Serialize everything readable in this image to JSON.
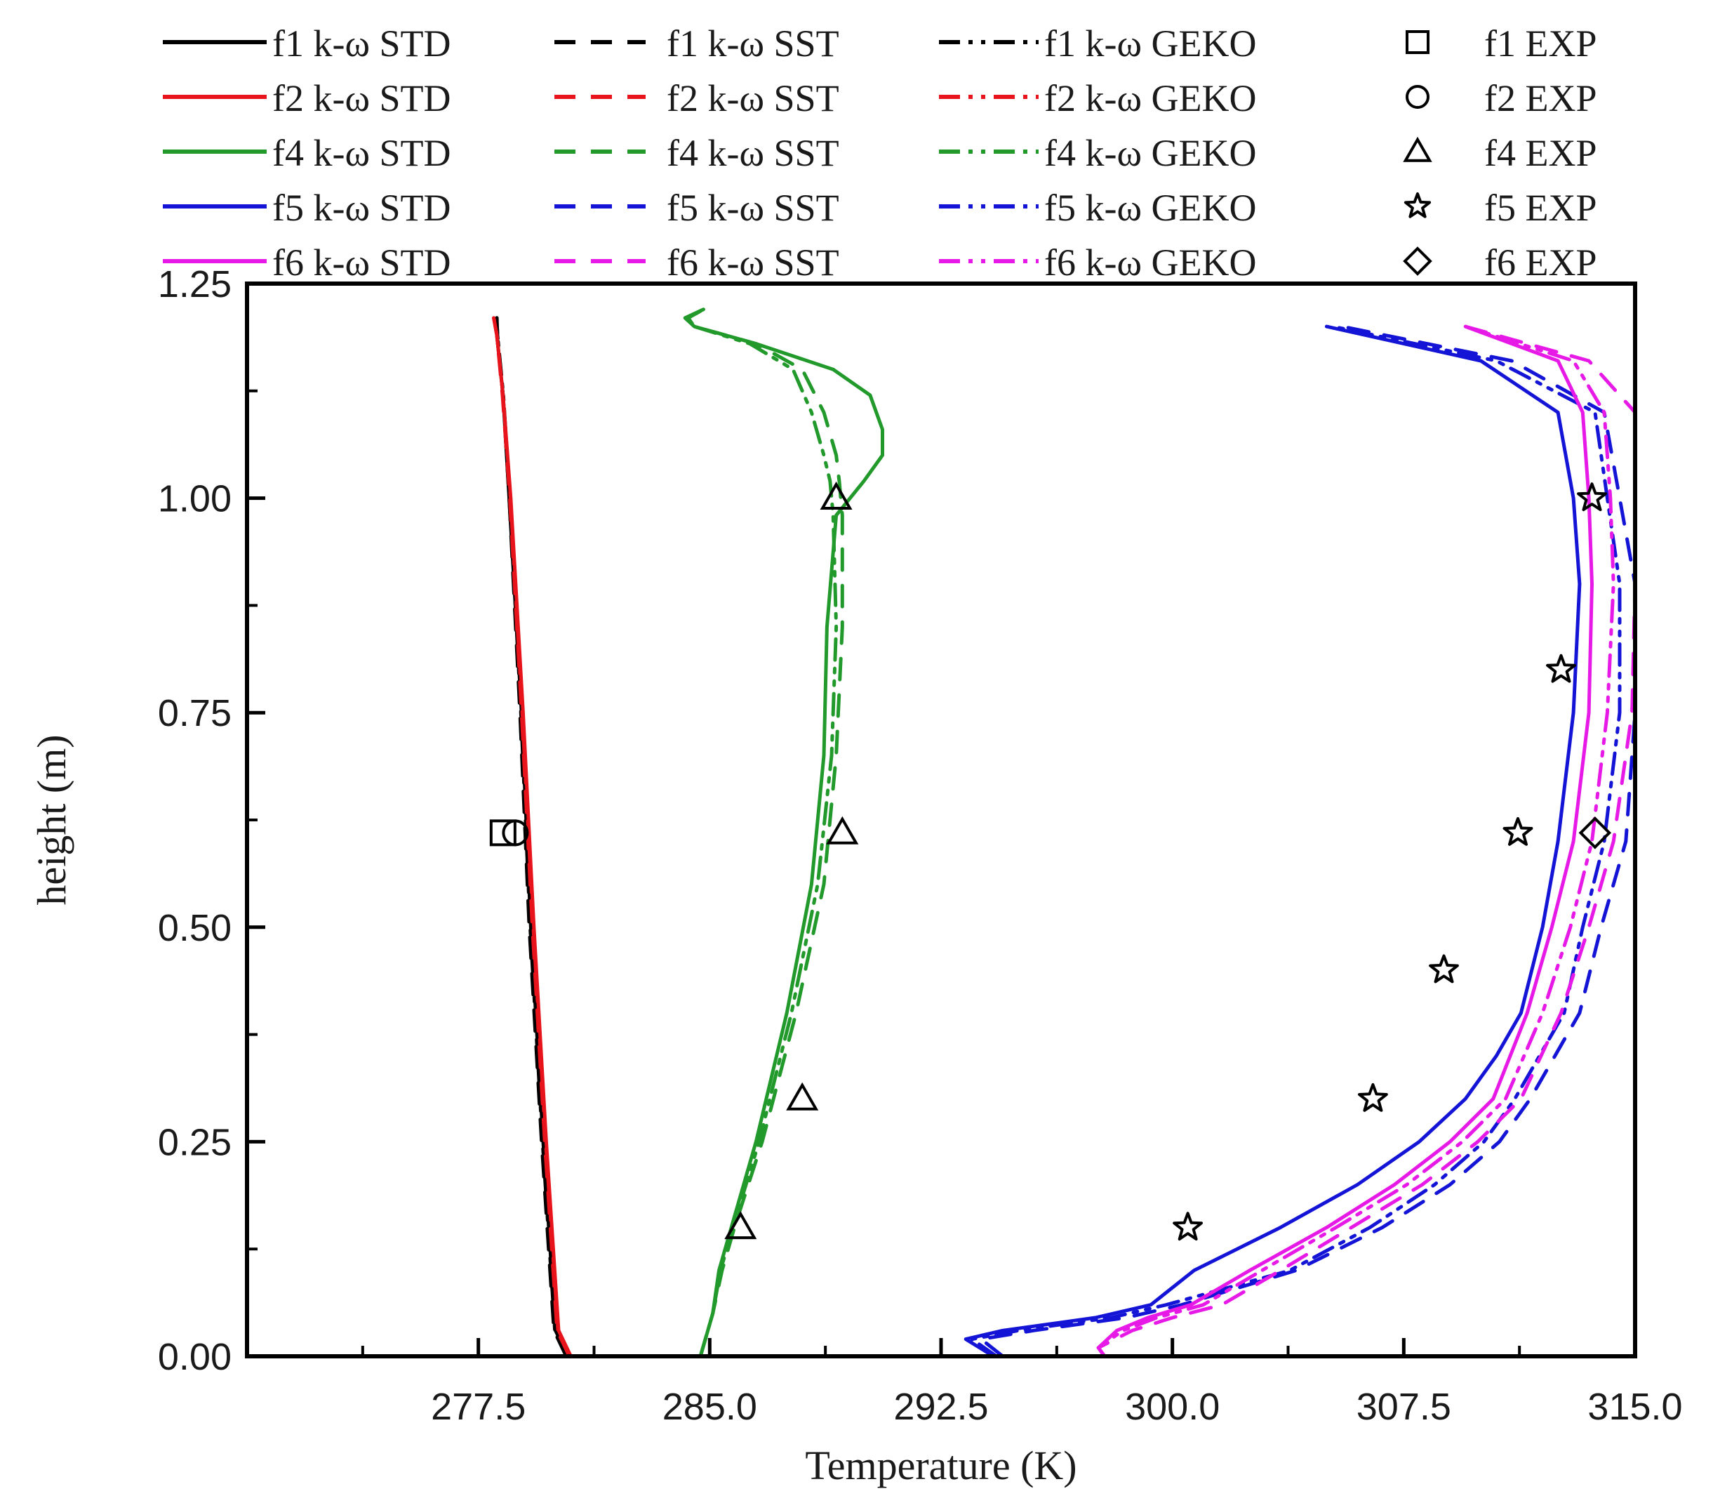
{
  "chart_data": {
    "type": "line",
    "title": "",
    "xlabel": "Temperature (K)",
    "ylabel": "height (m)",
    "xlim": [
      270.0,
      315.0
    ],
    "ylim": [
      0.0,
      1.25
    ],
    "xticks": [
      277.5,
      285.0,
      292.5,
      300.0,
      307.5,
      315.0
    ],
    "xtick_labels": [
      "277.5",
      "285.0",
      "292.5",
      "300.0",
      "307.5",
      "315.0"
    ],
    "yticks": [
      0.0,
      0.25,
      0.5,
      0.75,
      1.0,
      1.25
    ],
    "ytick_labels": [
      "0.00",
      "0.25",
      "0.50",
      "0.75",
      "1.00",
      "1.25"
    ],
    "colors": {
      "f1": "#000000",
      "f2": "#e8141c",
      "f4": "#21992b",
      "f5": "#1414d6",
      "f6": "#e619e6"
    },
    "legend": {
      "placement": "top",
      "entries": [
        {
          "label": "f1 k-ω STD",
          "case": "f1",
          "model": "STD"
        },
        {
          "label": "f1 k-ω SST",
          "case": "f1",
          "model": "SST"
        },
        {
          "label": "f1 k-ω GEKO",
          "case": "f1",
          "model": "GEKO"
        },
        {
          "label": "f1 EXP",
          "case": "f1",
          "model": "EXP",
          "marker": "square"
        },
        {
          "label": "f2 k-ω STD",
          "case": "f2",
          "model": "STD"
        },
        {
          "label": "f2 k-ω SST",
          "case": "f2",
          "model": "SST"
        },
        {
          "label": "f2 k-ω GEKO",
          "case": "f2",
          "model": "GEKO"
        },
        {
          "label": "f2 EXP",
          "case": "f2",
          "model": "EXP",
          "marker": "circle"
        },
        {
          "label": "f4 k-ω STD",
          "case": "f4",
          "model": "STD"
        },
        {
          "label": "f4 k-ω SST",
          "case": "f4",
          "model": "SST"
        },
        {
          "label": "f4 k-ω GEKO",
          "case": "f4",
          "model": "GEKO"
        },
        {
          "label": "f4 EXP",
          "case": "f4",
          "model": "EXP",
          "marker": "triangle"
        },
        {
          "label": "f5 k-ω STD",
          "case": "f5",
          "model": "STD"
        },
        {
          "label": "f5 k-ω SST",
          "case": "f5",
          "model": "SST"
        },
        {
          "label": "f5 k-ω GEKO",
          "case": "f5",
          "model": "GEKO"
        },
        {
          "label": "f5 EXP",
          "case": "f5",
          "model": "EXP",
          "marker": "star"
        },
        {
          "label": "f6 k-ω STD",
          "case": "f6",
          "model": "STD"
        },
        {
          "label": "f6 k-ω SST",
          "case": "f6",
          "model": "SST"
        },
        {
          "label": "f6 k-ω GEKO",
          "case": "f6",
          "model": "GEKO"
        },
        {
          "label": "f6 EXP",
          "case": "f6",
          "model": "EXP",
          "marker": "diamond"
        }
      ]
    },
    "series": [
      {
        "name": "f1 k-ω STD",
        "case": "f1",
        "model": "STD",
        "x": [
          280.4,
          280.0,
          279.6,
          279.2,
          278.9,
          278.5,
          278.3,
          278.1,
          278.1
        ],
        "y": [
          0.0,
          0.03,
          0.25,
          0.5,
          0.75,
          1.0,
          1.12,
          1.19,
          1.21
        ]
      },
      {
        "name": "f1 k-ω SST",
        "case": "f1",
        "model": "SST",
        "x": [
          280.35,
          279.95,
          279.55,
          279.15,
          278.85,
          278.5,
          278.3,
          278.12,
          278.1
        ],
        "y": [
          0.0,
          0.03,
          0.25,
          0.5,
          0.75,
          1.0,
          1.12,
          1.19,
          1.21
        ]
      },
      {
        "name": "f1 k-ω GEKO",
        "case": "f1",
        "model": "GEKO",
        "x": [
          280.38,
          279.98,
          279.58,
          279.18,
          278.88,
          278.52,
          278.31,
          278.12,
          278.1
        ],
        "y": [
          0.0,
          0.03,
          0.25,
          0.5,
          0.75,
          1.0,
          1.12,
          1.19,
          1.21
        ]
      },
      {
        "name": "f2 k-ω STD",
        "case": "f2",
        "model": "STD",
        "x": [
          280.5,
          280.1,
          279.7,
          279.3,
          278.95,
          278.55,
          278.3,
          278.1,
          278.0
        ],
        "y": [
          0.0,
          0.03,
          0.25,
          0.5,
          0.75,
          1.0,
          1.12,
          1.19,
          1.21
        ]
      },
      {
        "name": "f2 k-ω SST",
        "case": "f2",
        "model": "SST",
        "x": [
          280.45,
          280.05,
          279.65,
          279.25,
          278.9,
          278.52,
          278.28,
          278.1,
          278.0
        ],
        "y": [
          0.0,
          0.03,
          0.25,
          0.5,
          0.75,
          1.0,
          1.12,
          1.19,
          1.21
        ]
      },
      {
        "name": "f2 k-ω GEKO",
        "case": "f2",
        "model": "GEKO",
        "x": [
          280.48,
          280.08,
          279.68,
          279.28,
          278.92,
          278.54,
          278.3,
          278.1,
          278.0
        ],
        "y": [
          0.0,
          0.03,
          0.25,
          0.5,
          0.75,
          1.0,
          1.12,
          1.19,
          1.21
        ]
      },
      {
        "name": "f4 k-ω STD",
        "case": "f4",
        "model": "STD",
        "x": [
          284.7,
          285.1,
          285.3,
          285.7,
          286.5,
          287.5,
          288.3,
          288.7,
          288.8,
          289.1,
          290.0,
          290.6,
          290.6,
          290.2,
          289.0,
          286.5,
          284.5,
          284.2,
          284.8
        ],
        "y": [
          0.0,
          0.05,
          0.1,
          0.15,
          0.25,
          0.4,
          0.55,
          0.7,
          0.85,
          0.98,
          1.02,
          1.05,
          1.08,
          1.12,
          1.15,
          1.18,
          1.2,
          1.21,
          1.22
        ]
      },
      {
        "name": "f4 k-ω SST",
        "case": "f4",
        "model": "SST",
        "x": [
          284.7,
          285.1,
          285.4,
          285.8,
          286.7,
          287.8,
          288.7,
          289.1,
          289.3,
          289.3,
          289.2,
          289.1,
          288.7,
          288.0,
          286.5,
          284.5,
          284.3,
          284.8
        ],
        "y": [
          0.0,
          0.05,
          0.1,
          0.15,
          0.25,
          0.4,
          0.55,
          0.7,
          0.85,
          0.98,
          1.02,
          1.05,
          1.1,
          1.15,
          1.18,
          1.2,
          1.21,
          1.22
        ]
      },
      {
        "name": "f4 k-ω GEKO",
        "case": "f4",
        "model": "GEKO",
        "x": [
          284.7,
          285.1,
          285.35,
          285.75,
          286.6,
          287.65,
          288.5,
          288.95,
          289.1,
          289.0,
          288.9,
          288.7,
          288.3,
          287.7,
          286.3,
          284.5,
          284.3,
          284.8
        ],
        "y": [
          0.0,
          0.05,
          0.1,
          0.15,
          0.25,
          0.4,
          0.55,
          0.7,
          0.85,
          0.98,
          1.02,
          1.05,
          1.1,
          1.15,
          1.18,
          1.2,
          1.21,
          1.22
        ]
      },
      {
        "name": "f5 k-ω STD",
        "case": "f5",
        "model": "STD",
        "x": [
          294.2,
          293.3,
          294.5,
          297.5,
          299.3,
          300.7,
          303.5,
          306.0,
          308.0,
          309.5,
          310.5,
          311.3,
          312.0,
          312.5,
          313.0,
          313.2,
          313.0,
          312.5,
          310.0,
          305.0
        ],
        "y": [
          0.0,
          0.02,
          0.03,
          0.045,
          0.06,
          0.1,
          0.15,
          0.2,
          0.25,
          0.3,
          0.35,
          0.4,
          0.5,
          0.6,
          0.75,
          0.9,
          1.0,
          1.1,
          1.16,
          1.2
        ]
      },
      {
        "name": "f5 k-ω SST",
        "case": "f5",
        "model": "SST",
        "x": [
          294.5,
          293.8,
          295.5,
          298.5,
          300.3,
          304.0,
          306.8,
          309.0,
          310.6,
          311.6,
          312.4,
          313.2,
          313.9,
          314.7,
          315.0,
          315.0,
          314.5,
          314.0,
          311.0,
          305.5
        ],
        "y": [
          0.0,
          0.02,
          0.03,
          0.045,
          0.06,
          0.1,
          0.15,
          0.2,
          0.25,
          0.3,
          0.35,
          0.4,
          0.5,
          0.6,
          0.75,
          0.9,
          1.0,
          1.1,
          1.16,
          1.2
        ]
      },
      {
        "name": "f5 k-ω GEKO",
        "case": "f5",
        "model": "GEKO",
        "x": [
          294.3,
          293.5,
          295.0,
          298.0,
          299.8,
          303.8,
          306.4,
          308.5,
          310.1,
          311.1,
          311.9,
          312.7,
          313.3,
          314.0,
          314.5,
          314.5,
          314.1,
          313.7,
          310.5,
          305.2
        ],
        "y": [
          0.0,
          0.02,
          0.03,
          0.045,
          0.06,
          0.1,
          0.15,
          0.2,
          0.25,
          0.3,
          0.35,
          0.4,
          0.5,
          0.6,
          0.75,
          0.9,
          1.0,
          1.1,
          1.16,
          1.2
        ]
      },
      {
        "name": "f6 k-ω STD",
        "case": "f6",
        "model": "STD",
        "x": [
          297.8,
          297.6,
          298.2,
          299.2,
          300.6,
          302.5,
          305.0,
          307.2,
          309.0,
          310.4,
          311.5,
          312.3,
          313.0,
          313.5,
          313.6,
          313.5,
          313.3,
          312.5,
          309.5
        ],
        "y": [
          0.0,
          0.01,
          0.03,
          0.045,
          0.06,
          0.1,
          0.15,
          0.2,
          0.25,
          0.3,
          0.4,
          0.5,
          0.6,
          0.75,
          0.9,
          1.0,
          1.1,
          1.16,
          1.2
        ]
      },
      {
        "name": "f6 k-ω SST",
        "case": "f6",
        "model": "SST",
        "x": [
          297.8,
          297.6,
          298.7,
          300.0,
          301.6,
          303.5,
          305.8,
          308.1,
          309.9,
          311.3,
          312.6,
          313.5,
          314.3,
          314.9,
          315.0,
          315.0,
          315.0,
          313.5,
          309.5
        ],
        "y": [
          0.0,
          0.01,
          0.03,
          0.045,
          0.06,
          0.1,
          0.15,
          0.2,
          0.25,
          0.3,
          0.4,
          0.5,
          0.6,
          0.75,
          0.9,
          1.0,
          1.1,
          1.16,
          1.2
        ]
      },
      {
        "name": "f6 k-ω GEKO",
        "case": "f6",
        "model": "GEKO",
        "x": [
          297.8,
          297.6,
          298.4,
          299.5,
          301.0,
          302.9,
          305.3,
          307.6,
          309.4,
          310.8,
          312.0,
          312.9,
          313.6,
          314.1,
          314.3,
          314.2,
          314.0,
          313.0,
          309.5
        ],
        "y": [
          0.0,
          0.01,
          0.03,
          0.045,
          0.06,
          0.1,
          0.15,
          0.2,
          0.25,
          0.3,
          0.4,
          0.5,
          0.6,
          0.75,
          0.9,
          1.0,
          1.1,
          1.16,
          1.2
        ]
      }
    ],
    "experimental": [
      {
        "name": "f1 EXP",
        "case": "f1",
        "marker": "square",
        "points": [
          [
            278.3,
            0.61
          ]
        ]
      },
      {
        "name": "f2 EXP",
        "case": "f2",
        "marker": "circle",
        "points": [
          [
            278.7,
            0.61
          ]
        ]
      },
      {
        "name": "f4 EXP",
        "case": "f4",
        "marker": "triangle",
        "points": [
          [
            286.0,
            0.15
          ],
          [
            288.0,
            0.3
          ],
          [
            289.3,
            0.61
          ],
          [
            289.1,
            1.0
          ]
        ]
      },
      {
        "name": "f5 EXP",
        "case": "f5",
        "marker": "star",
        "points": [
          [
            300.5,
            0.15
          ],
          [
            306.5,
            0.3
          ],
          [
            308.8,
            0.45
          ],
          [
            311.2,
            0.61
          ],
          [
            312.6,
            0.8
          ],
          [
            313.6,
            1.0
          ]
        ]
      },
      {
        "name": "f6 EXP",
        "case": "f6",
        "marker": "diamond",
        "points": [
          [
            313.7,
            0.61
          ]
        ]
      }
    ]
  }
}
